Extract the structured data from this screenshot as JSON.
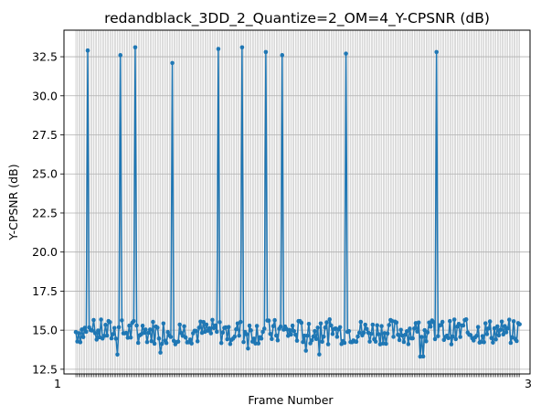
{
  "chart_data": {
    "type": "line",
    "title": "redandblack_3DD_2_Quantize=2_OM=4_Y-CPSNR (dB)",
    "xlabel": "Frame Number",
    "ylabel": "Y-CPSNR (dB)",
    "xlim": [
      -8,
      306
    ],
    "ylim": [
      12.2,
      34.2
    ],
    "yticks": [
      12.5,
      15.0,
      17.5,
      20.0,
      22.5,
      25.0,
      27.5,
      30.0,
      32.5
    ],
    "ytick_labels": [
      "12.5",
      "15.0",
      "17.5",
      "20.0",
      "22.5",
      "25.0",
      "27.5",
      "30.0",
      "32.5"
    ],
    "xtick_first_label": "1",
    "xtick_last_label": "3",
    "grid": true,
    "marker": "circle",
    "series": [
      {
        "color": "#1f77b4",
        "peaks": [
          [
            8,
            32.9
          ],
          [
            30,
            32.6
          ],
          [
            40,
            33.1
          ],
          [
            65,
            32.1
          ],
          [
            96,
            33.0
          ],
          [
            112,
            33.1
          ],
          [
            128,
            32.8
          ],
          [
            139,
            32.6
          ],
          [
            182,
            32.7
          ],
          [
            243,
            32.8
          ]
        ],
        "baseline_min": 13.5,
        "baseline_max": 16.2,
        "frames": 300
      }
    ]
  }
}
